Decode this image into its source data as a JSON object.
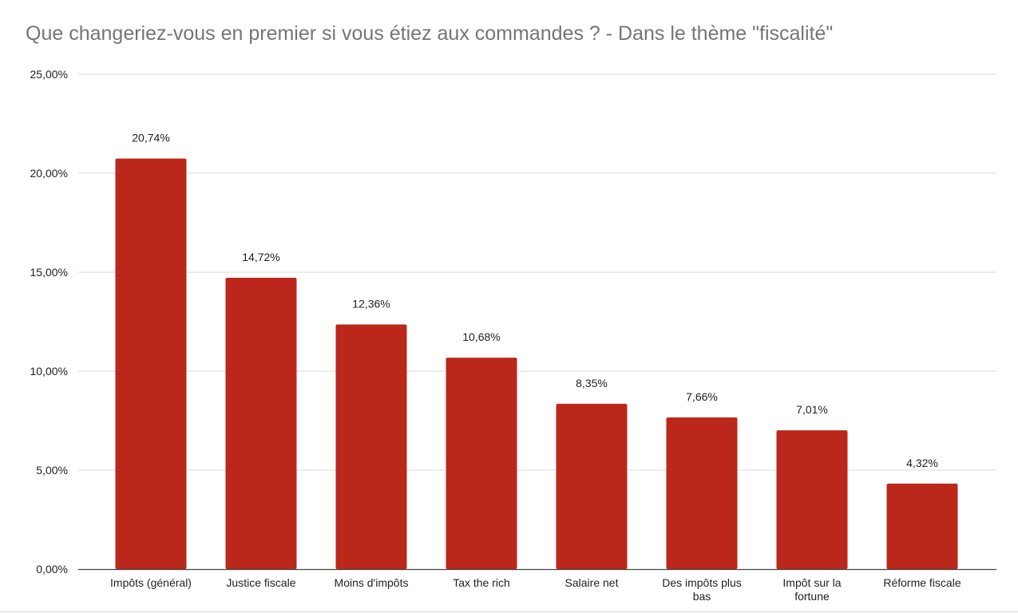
{
  "chart_data": {
    "type": "bar",
    "title": "Que changeriez-vous en premier si vous étiez aux commandes ? - Dans le thème \"fiscalité\"",
    "categories": [
      [
        "Impôts (général)"
      ],
      [
        "Justice fiscale"
      ],
      [
        "Moins d'impôts"
      ],
      [
        "Tax the rich"
      ],
      [
        "Salaire net"
      ],
      [
        "Des impôts plus",
        "bas"
      ],
      [
        "Impôt sur la",
        "fortune"
      ],
      [
        "Réforme fiscale"
      ]
    ],
    "values": [
      20.74,
      14.72,
      12.36,
      10.68,
      8.35,
      7.66,
      7.01,
      4.32
    ],
    "data_labels": [
      "20,74%",
      "14,72%",
      "12,36%",
      "10,68%",
      "8,35%",
      "7,66%",
      "7,01%",
      "4,32%"
    ],
    "ylim": [
      0,
      25
    ],
    "yticks": [
      0,
      5,
      10,
      15,
      20,
      25
    ],
    "ytick_labels": [
      "0,00%",
      "5,00%",
      "10,00%",
      "15,00%",
      "20,00%",
      "25,00%"
    ],
    "grid": true,
    "legend": "none",
    "bar_color": "#bb271a",
    "grid_color": "#d9d9d9",
    "axis_color": "#444444"
  }
}
